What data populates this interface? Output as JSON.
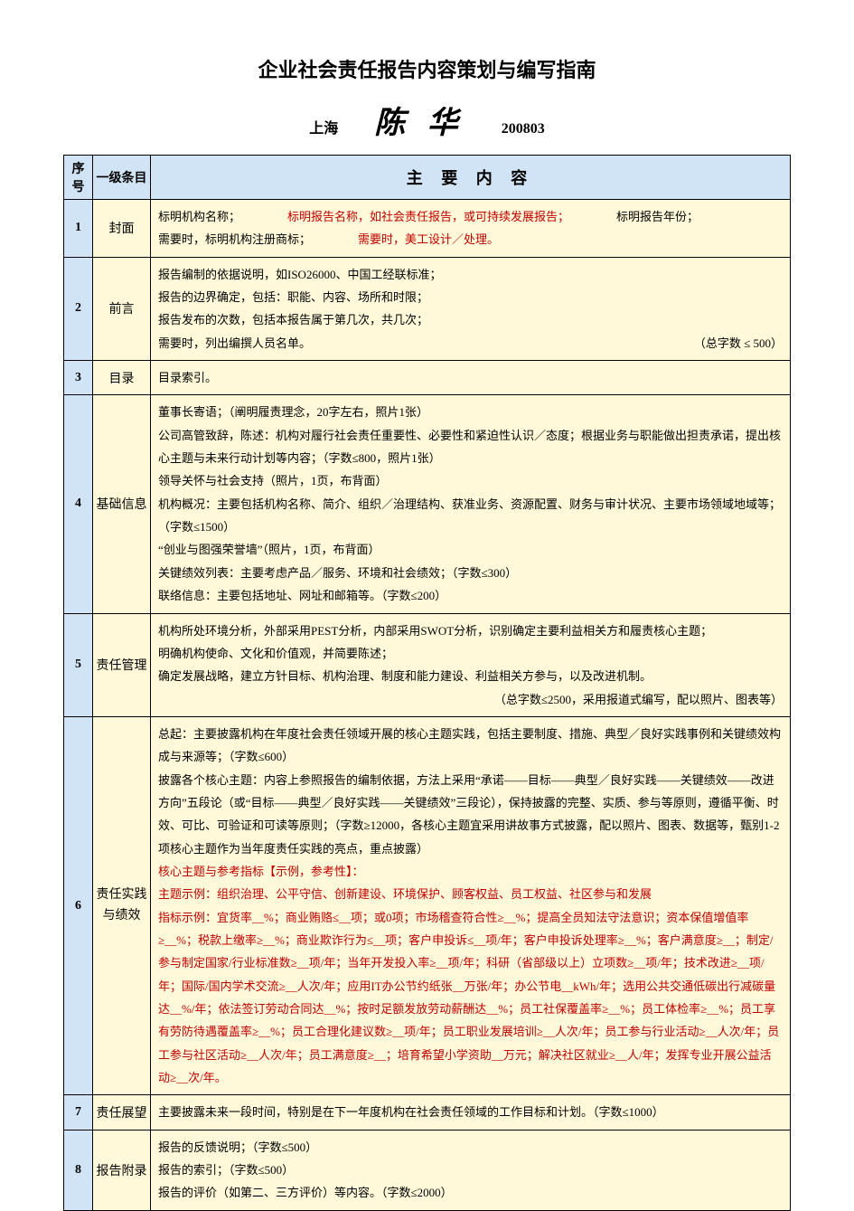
{
  "title": "企业社会责任报告内容策划与编写指南",
  "subtitle": {
    "location": "上海",
    "author": "陈 华",
    "date": "200803"
  },
  "headers": {
    "num": "序号",
    "cat": "一级条目",
    "content": "主 要 内 容"
  },
  "rows": [
    {
      "num": "1",
      "cat": "封面",
      "lines": [
        {
          "plain": "标明机构名称；",
          "red_gap": "wide",
          "red": "标明报告名称，如社会责任报告，或可持续发展报告；",
          "tail_gap": "wide",
          "tail": "标明报告年份；"
        },
        {
          "plain": "需要时，标明机构注册商标；",
          "red_gap": "wide",
          "red": "需要时，美工设计／处理。"
        }
      ]
    },
    {
      "num": "2",
      "cat": "前言",
      "lines": [
        {
          "plain": "报告编制的依据说明，如ISO26000、中国工经联标准；"
        },
        {
          "plain": "报告的边界确定，包括：职能、内容、场所和时限；"
        },
        {
          "plain": "报告发布的次数，包括本报告属于第几次，共几次；"
        },
        {
          "plain": "需要时，列出编撰人员名单。",
          "right_note": "（总字数 ≤ 500）"
        }
      ]
    },
    {
      "num": "3",
      "cat": "目录",
      "lines": [
        {
          "plain": "目录索引。"
        }
      ]
    },
    {
      "num": "4",
      "cat": "基础信息",
      "lines": [
        {
          "plain": "董事长寄语；（阐明履责理念，20字左右，照片1张）"
        },
        {
          "plain": "公司高管致辞，陈述：机构对履行社会责任重要性、必要性和紧迫性认识／态度；根据业务与职能做出担责承诺，提出核心主题与未来行动计划等内容；（字数≤800，照片1张）"
        },
        {
          "plain": "领导关怀与社会支持（照片，1页，布背面）"
        },
        {
          "plain": "机构概况：主要包括机构名称、简介、组织／治理结构、获准业务、资源配置、财务与审计状况、主要市场领域地域等；（字数≤1500）"
        },
        {
          "plain": "“创业与图强荣誉墙”（照片，1页，布背面）"
        },
        {
          "plain": "关键绩效列表：主要考虑产品／服务、环境和社会绩效；（字数≤300）"
        },
        {
          "plain": "联络信息：主要包括地址、网址和邮箱等。（字数≤200）"
        }
      ]
    },
    {
      "num": "5",
      "cat": "责任管理",
      "lines": [
        {
          "plain": "机构所处环境分析，外部采用PEST分析，内部采用SWOT分析，识别确定主要利益相关方和履责核心主题；"
        },
        {
          "plain": "明确机构使命、文化和价值观，并简要陈述；"
        },
        {
          "plain": "确定发展战略，建立方针目标、机构治理、制度和能力建设、利益相关方参与，以及改进机制。"
        },
        {
          "right_note": "（总字数≤2500，采用报道式编写，配以照片、图表等）"
        }
      ]
    },
    {
      "num": "6",
      "cat": "责任实践\n与绩效",
      "lines": [
        {
          "plain": "总起：主要披露机构在年度社会责任领域开展的核心主题实践，包括主要制度、措施、典型／良好实践事例和关键绩效构成与来源等；（字数≤600）"
        },
        {
          "plain": "披露各个核心主题：内容上参照报告的编制依据，方法上采用“承诺——目标——典型／良好实践——关键绩效——改进方向”五段论（或“目标——典型／良好实践——关键绩效”三段论），保持披露的完整、实质、参与等原则，遵循平衡、时效、可比、可验证和可读等原则；（字数≥12000，各核心主题宜采用讲故事方式披露，配以照片、图表、数据等，甄别1-2项核心主题作为当年度责任实践的亮点，重点披露）"
        },
        {
          "red": "核心主题与参考指标【示例，参考性】："
        },
        {
          "red": "主题示例：组织治理、公平守信、创新建设、环境保护、顾客权益、员工权益、社区参与和发展"
        },
        {
          "red": "指标示例：宜货率__%；商业贿赂≤__项；或0项；市场稽查符合性≥__%；提高全员知法守法意识；资本保值增值率≥__%；税款上缴率≥__%；商业欺诈行为≤__项；客户申投诉≤__项/年；客户申投诉处理率≥__%；客户满意度≥__；制定/参与制定国家/行业标准数≥__项/年；当年开发投入率≥__项/年；科研（省部级以上）立项数≥__项/年；技术改进≥__项/年；国际/国内学术交流≥__人次/年；应用IT办公节约纸张__万张/年；办公节电__kWh/年；选用公共交通低碳出行减碳量达__%/年；依法签订劳动合同达__%；按时足额发放劳动薪酬达__%；员工社保覆盖率≥__%；员工体检率≥__%；员工享有劳防待遇覆盖率≥__%；员工合理化建议数≥__项/年；员工职业发展培训≥__人次/年；员工参与行业活动≥__人次/年；员工参与社区活动≥__人次/年；员工满意度≥__；培育希望小学资助__万元；解决社区就业≥__人/年；发挥专业开展公益活动≥__次/年。"
        }
      ]
    },
    {
      "num": "7",
      "cat": "责任展望",
      "lines": [
        {
          "plain": "主要披露未来一段时间，特别是在下一年度机构在社会责任领域的工作目标和计划。（字数≤1000）"
        }
      ]
    },
    {
      "num": "8",
      "cat": "报告附录",
      "lines": [
        {
          "plain": "报告的反馈说明；（字数≤500）"
        },
        {
          "plain": "报告的索引；（字数≤500）"
        },
        {
          "plain": "报告的评价（如第二、三方评价）等内容。（字数≤2000）"
        }
      ]
    }
  ],
  "colors": {
    "header_bg": "#d0e4f5",
    "body_bg": "#fff9d9",
    "border": "#000000",
    "red_text": "#c00000"
  }
}
